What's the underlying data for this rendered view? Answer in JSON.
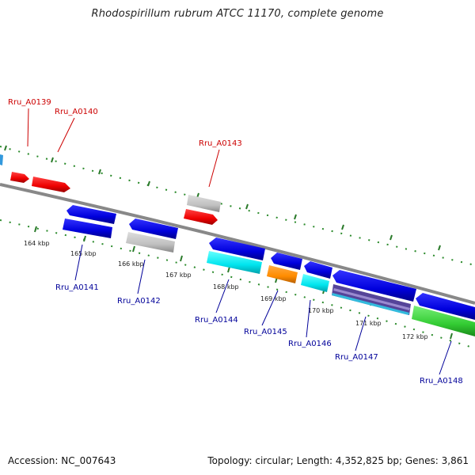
{
  "title": "Rhodospirillum rubrum ATCC 11170, complete genome",
  "accession_label": "Accession: NC_007643",
  "summary_label": "Topology: circular; Length: 4,352,825 bp; Genes: 3,861",
  "colors": {
    "forward_label": "#cc0000",
    "reverse_label": "#000099",
    "backbone": "#888888",
    "tick_dots": "#2a8a2a",
    "blue": "#0000dd",
    "red": "#ee0000",
    "gray": "#c0c0c0",
    "cyan": "#00e5ee",
    "orange": "#ff8c00",
    "green": "#33cc33",
    "purple": "#554499",
    "lightblue": "#3399dd"
  },
  "ticks": [
    "164 kbp",
    "165 kbp",
    "166 kbp",
    "167 kbp",
    "168 kbp",
    "169 kbp",
    "170 kbp",
    "171 kbp",
    "172 kbp"
  ],
  "forward_labels": [
    "Rru_A0139",
    "Rru_A0140",
    "Rru_A0143"
  ],
  "reverse_labels": [
    "Rru_A0141",
    "Rru_A0142",
    "Rru_A0144",
    "Rru_A0145",
    "Rru_A0146",
    "Rru_A0147",
    "Rru_A0148"
  ]
}
